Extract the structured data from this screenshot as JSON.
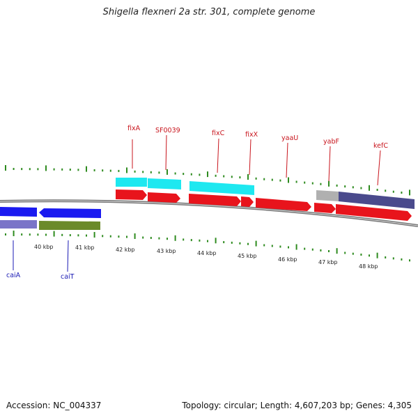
{
  "title": "Shigella flexneri 2a str. 301, complete genome",
  "footer": {
    "accession": "Accession: NC_004337",
    "summary": "Topology: circular; Length: 4,607,203 bp; Genes: 4,305"
  },
  "colors": {
    "backbone": "#7a7a7a",
    "tick": "#2e8b1f",
    "forward_gene": "#e8141c",
    "reverse_gene": "#1a1af0",
    "cds_cyan": "#1ee8f0",
    "cds_purple": "#4a4a8c",
    "cds_lavender": "#7a74c8",
    "cds_olive": "#6b8a2a",
    "cds_grey": "#b0b0b0",
    "label_forward": "#c8141c",
    "label_reverse": "#1a1ab4"
  },
  "scale_labels": [
    "40 kbp",
    "41 kbp",
    "42 kbp",
    "43 kbp",
    "44 kbp",
    "45 kbp",
    "46 kbp",
    "47 kbp",
    "48 kbp"
  ],
  "gene_labels_top": [
    "fixA",
    "SF0039",
    "fixC",
    "fixX",
    "yaaU",
    "yabF",
    "kefC"
  ],
  "gene_labels_bottom": [
    "caiA",
    "caiT"
  ]
}
